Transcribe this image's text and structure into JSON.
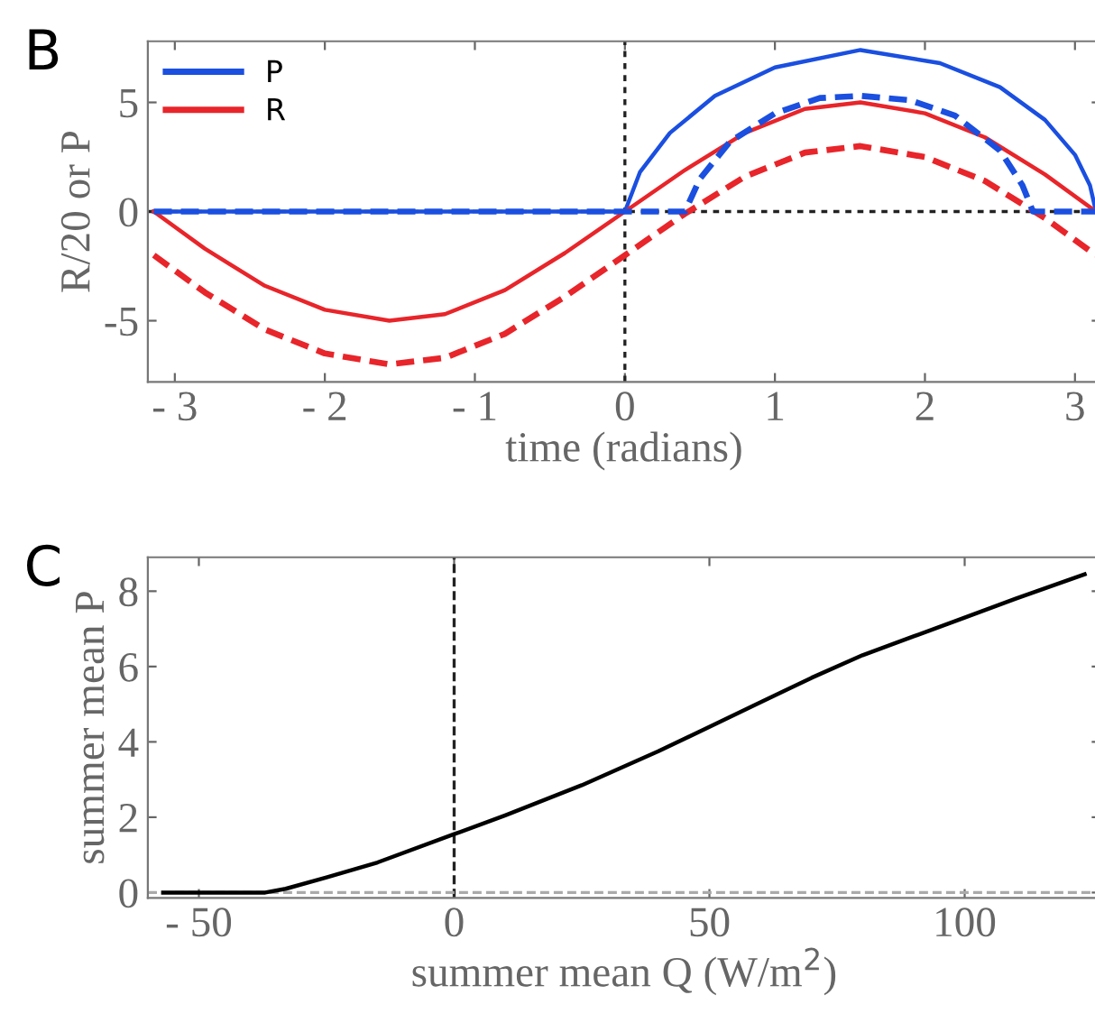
{
  "chart_data": [
    {
      "type": "line",
      "annotations": [
        "B"
      ],
      "xlabel": "time (radians)",
      "ylabel": "R/20 or P",
      "xlim": [
        -3.18,
        3.17
      ],
      "ylim": [
        -7.8,
        7.8
      ],
      "xticks": [
        {
          "value": -3,
          "label": "- 3"
        },
        {
          "value": -2,
          "label": "- 2"
        },
        {
          "value": -1,
          "label": "- 1"
        },
        0,
        1,
        2,
        3
      ],
      "yticks": [
        {
          "value": -5,
          "label": "-5"
        },
        0,
        5
      ],
      "grid": false,
      "legend": "top left",
      "marker": "none",
      "ref_lines": [
        {
          "axis": "x",
          "value": 0,
          "color": "#222222",
          "line_style": "dotted"
        },
        {
          "axis": "y",
          "value": 0,
          "color": "#222222",
          "line_style": "dotted"
        }
      ],
      "series": [
        {
          "name": "P",
          "color": "#1a4fe0",
          "line_style": "solid",
          "x": [
            -3.14,
            -1.5,
            0,
            0.1,
            0.3,
            0.6,
            1.0,
            1.57,
            2.1,
            2.5,
            2.8,
            3.0,
            3.1,
            3.14
          ],
          "values": [
            0,
            0,
            0,
            1.8,
            3.6,
            5.3,
            6.6,
            7.4,
            6.8,
            5.7,
            4.2,
            2.6,
            1.2,
            0
          ]
        },
        {
          "name": "R",
          "color": "#e8252a",
          "line_style": "solid",
          "x": [
            -3.14,
            -2.8,
            -2.4,
            -2.0,
            -1.57,
            -1.2,
            -0.8,
            -0.4,
            0,
            0.4,
            0.8,
            1.2,
            1.57,
            2.0,
            2.4,
            2.8,
            3.14
          ],
          "values": [
            0,
            -1.7,
            -3.4,
            -4.5,
            -5,
            -4.7,
            -3.6,
            -1.9,
            0,
            1.9,
            3.6,
            4.7,
            5,
            4.5,
            3.4,
            1.7,
            0
          ]
        },
        {
          "color": "#e8252a",
          "line_style": "dashed",
          "x": [
            -3.14,
            -2.8,
            -2.4,
            -2.0,
            -1.57,
            -1.2,
            -0.8,
            -0.4,
            0,
            0.4,
            0.8,
            1.2,
            1.57,
            2.0,
            2.4,
            2.8,
            3.14
          ],
          "values": [
            -2,
            -3.7,
            -5.4,
            -6.5,
            -7,
            -6.7,
            -5.6,
            -3.9,
            -2,
            -0.1,
            1.6,
            2.7,
            3,
            2.5,
            1.4,
            -0.3,
            -2
          ]
        },
        {
          "color": "#1a4fe0",
          "line_style": "dashed",
          "x": [
            -3.14,
            0,
            0.4,
            0.5,
            0.7,
            1.0,
            1.3,
            1.57,
            1.9,
            2.2,
            2.5,
            2.65,
            2.72,
            3.14
          ],
          "values": [
            0,
            0,
            0,
            1.5,
            3.2,
            4.5,
            5.2,
            5.3,
            5.1,
            4.4,
            2.8,
            1.2,
            0,
            0
          ]
        }
      ]
    },
    {
      "type": "line",
      "annotations": [
        "C"
      ],
      "xlabel": "summer mean Q (W/m$^{2}$)",
      "ylabel": "summer mean P",
      "xlim": [
        -60,
        126.6
      ],
      "ylim": [
        -0.14,
        8.9
      ],
      "xticks": [
        {
          "value": -50,
          "label": "- 50"
        },
        0,
        50,
        100
      ],
      "yticks": [
        0,
        2,
        4,
        6,
        8
      ],
      "grid": false,
      "marker": "none",
      "ref_lines": [
        {
          "axis": "x",
          "value": 0,
          "color": "#222222",
          "line_style": "dashed"
        },
        {
          "axis": "y",
          "value": 0,
          "color": "#aaaaaa",
          "line_style": "dashed"
        }
      ],
      "series": [
        {
          "color": "#000000",
          "line_style": "solid",
          "x": [
            -57,
            -37,
            -33,
            -25,
            -15,
            0,
            10,
            25,
            40,
            50,
            60,
            70,
            80,
            90,
            100,
            110,
            123.5
          ],
          "values": [
            0,
            0,
            0.1,
            0.4,
            0.8,
            1.55,
            2.05,
            2.85,
            3.75,
            4.4,
            5.05,
            5.7,
            6.3,
            6.8,
            7.3,
            7.8,
            8.45
          ]
        }
      ]
    }
  ]
}
